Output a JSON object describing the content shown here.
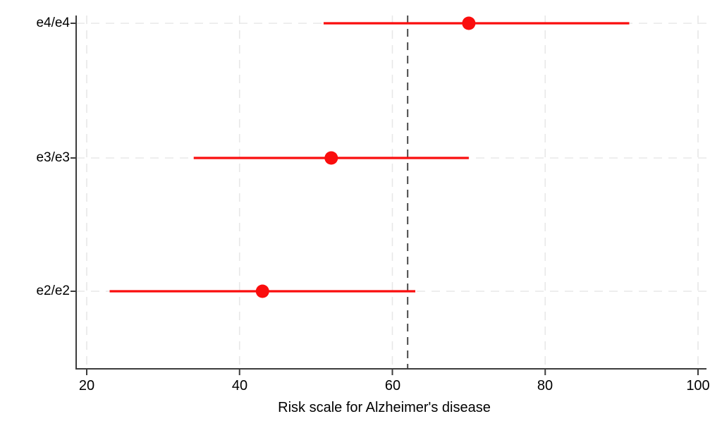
{
  "chart_data": {
    "type": "scatter",
    "subtype": "forest-plot-with-ci",
    "title": "",
    "xlabel": "Risk scale for Alzheimer's disease",
    "ylabel": "",
    "categories": [
      "e4/e4",
      "e3/e3",
      "e2/e2"
    ],
    "series": [
      {
        "name": "risk-estimate",
        "points": [
          {
            "category": "e4/e4",
            "value": 70,
            "ci_low": 51,
            "ci_high": 91
          },
          {
            "category": "e3/e3",
            "value": 52,
            "ci_low": 34,
            "ci_high": 70
          },
          {
            "category": "e2/e2",
            "value": 43,
            "ci_low": 23,
            "ci_high": 63
          }
        ]
      }
    ],
    "reference_line_x": 62,
    "xticks": [
      20,
      40,
      60,
      80,
      100
    ],
    "xlim": [
      18.6,
      101.2
    ],
    "grid": "dashed",
    "legend": "none",
    "colors": {
      "marker": "#fa0d0d",
      "ci_line": "#fa0d0d",
      "grid": "#e8e8e8",
      "reference": "#4a4a4a",
      "axis": "#3c3c3c",
      "text": "#000000",
      "background": "#ffffff"
    }
  }
}
